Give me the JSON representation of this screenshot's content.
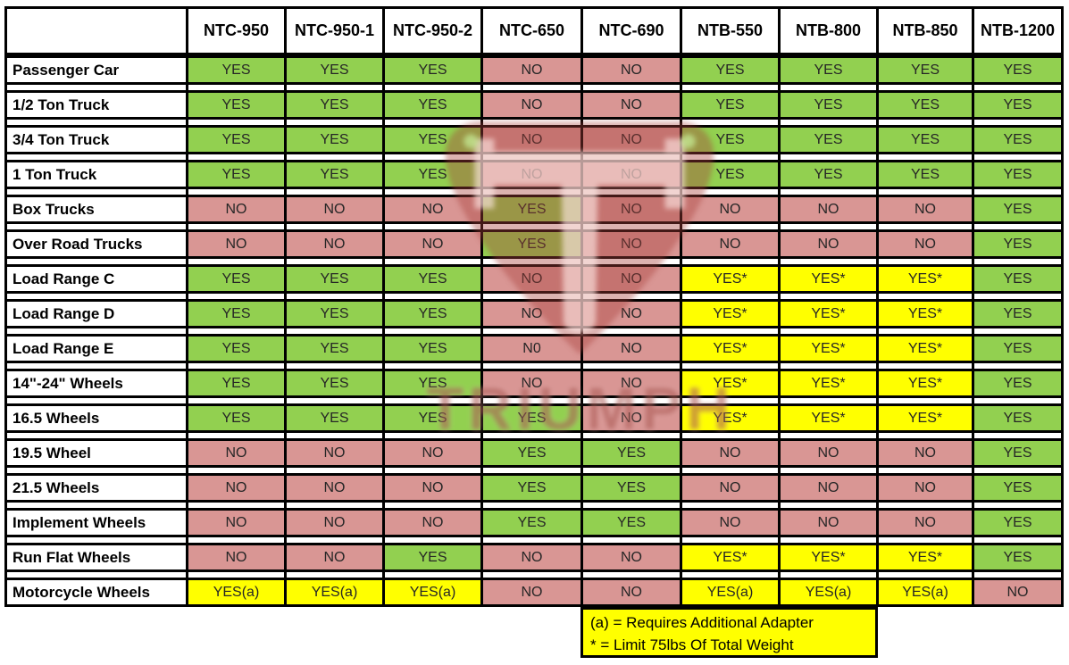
{
  "chart_data": {
    "type": "table",
    "columns": [
      "NTC-950",
      "NTC-950-1",
      "NTC-950-2",
      "NTC-650",
      "NTC-690",
      "NTB-550",
      "NTB-800",
      "NTB-850",
      "NTB-1200"
    ],
    "rows": [
      {
        "label": "Passenger Car",
        "values": [
          "YES",
          "YES",
          "YES",
          "NO",
          "NO",
          "YES",
          "YES",
          "YES",
          "YES"
        ]
      },
      {
        "label": "1/2 Ton Truck",
        "values": [
          "YES",
          "YES",
          "YES",
          "NO",
          "NO",
          "YES",
          "YES",
          "YES",
          "YES"
        ]
      },
      {
        "label": "3/4 Ton Truck",
        "values": [
          "YES",
          "YES",
          "YES",
          "NO",
          "NO",
          "YES",
          "YES",
          "YES",
          "YES"
        ]
      },
      {
        "label": "1 Ton Truck",
        "values": [
          "YES",
          "YES",
          "YES",
          "NO",
          "NO",
          "YES",
          "YES",
          "YES",
          "YES"
        ]
      },
      {
        "label": "Box Trucks",
        "values": [
          "NO",
          "NO",
          "NO",
          "YES",
          "NO",
          "NO",
          "NO",
          "NO",
          "YES"
        ]
      },
      {
        "label": "Over Road Trucks",
        "values": [
          "NO",
          "NO",
          "NO",
          "YES",
          "NO",
          "NO",
          "NO",
          "NO",
          "YES"
        ]
      },
      {
        "label": "Load Range C",
        "values": [
          "YES",
          "YES",
          "YES",
          "NO",
          "NO",
          "YES*",
          "YES*",
          "YES*",
          "YES"
        ]
      },
      {
        "label": "Load Range D",
        "values": [
          "YES",
          "YES",
          "YES",
          "NO",
          "NO",
          "YES*",
          "YES*",
          "YES*",
          "YES"
        ]
      },
      {
        "label": "Load Range E",
        "values": [
          "YES",
          "YES",
          "YES",
          "N0",
          "NO",
          "YES*",
          "YES*",
          "YES*",
          "YES"
        ]
      },
      {
        "label": "14\"-24\" Wheels",
        "values": [
          "YES",
          "YES",
          "YES",
          "NO",
          "NO",
          "YES*",
          "YES*",
          "YES*",
          "YES"
        ]
      },
      {
        "label": "16.5 Wheels",
        "values": [
          "YES",
          "YES",
          "YES",
          "YES",
          "NO",
          "YES*",
          "YES*",
          "YES*",
          "YES"
        ]
      },
      {
        "label": "19.5 Wheel",
        "values": [
          "NO",
          "NO",
          "NO",
          "YES",
          "YES",
          "NO",
          "NO",
          "NO",
          "YES"
        ]
      },
      {
        "label": "21.5 Wheels",
        "values": [
          "NO",
          "NO",
          "NO",
          "YES",
          "YES",
          "NO",
          "NO",
          "NO",
          "YES"
        ]
      },
      {
        "label": "Implement Wheels",
        "values": [
          "NO",
          "NO",
          "NO",
          "YES",
          "YES",
          "NO",
          "NO",
          "NO",
          "YES"
        ]
      },
      {
        "label": "Run Flat Wheels",
        "values": [
          "NO",
          "NO",
          "YES",
          "NO",
          "NO",
          "YES*",
          "YES*",
          "YES*",
          "YES"
        ]
      },
      {
        "label": "Motorcycle Wheels",
        "values": [
          "YES(a)",
          "YES(a)",
          "YES(a)",
          "NO",
          "NO",
          "YES(a)",
          "YES(a)",
          "YES(a)",
          "NO"
        ]
      }
    ],
    "notes": [
      "(a) = Requires Additional Adapter",
      "* = Limit 75lbs Of Total Weight"
    ],
    "legend_position": "bottom",
    "value_color_legend": {
      "YES": "green",
      "NO": "red",
      "YES* and YES(a)": "yellow"
    }
  },
  "watermark": {
    "text": "TRIUMPH"
  },
  "colors": {
    "yes": "#92D050",
    "no": "#D99694",
    "special": "#FFFF00",
    "border": "#000000",
    "wm": "#A83E3A",
    "wmtext": "#AC5C57"
  }
}
